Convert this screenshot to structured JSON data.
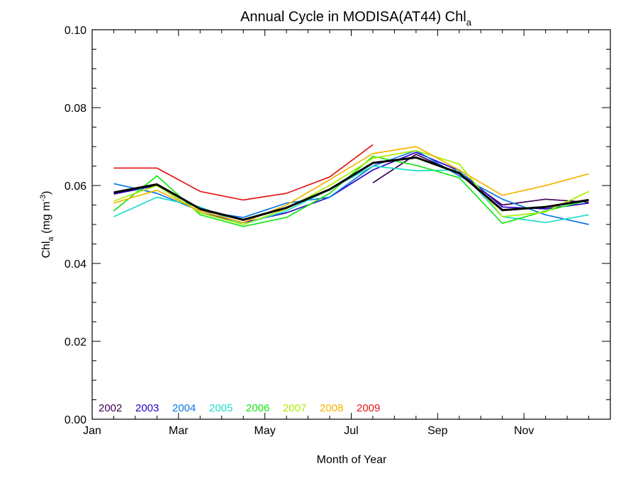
{
  "chart_data": {
    "type": "line",
    "title_main": "Annual Cycle in MODISA(AT44) Chl",
    "title_sub": "a",
    "ylabel_main": "Chl",
    "ylabel_sub": "a",
    "ylabel_units_open": " (mg m",
    "ylabel_units_sup": "-3",
    "ylabel_units_close": ")",
    "xlabel": "Month of Year",
    "xlim": [
      0,
      12
    ],
    "ylim": [
      0.0,
      0.1
    ],
    "x_tick_labels": [
      {
        "x": 0,
        "label": "Jan"
      },
      {
        "x": 2,
        "label": "Mar"
      },
      {
        "x": 4,
        "label": "May"
      },
      {
        "x": 6,
        "label": "Jul"
      },
      {
        "x": 8,
        "label": "Sep"
      },
      {
        "x": 10,
        "label": "Nov"
      }
    ],
    "y_tick_labels": [
      {
        "y": 0.0,
        "label": "0.00"
      },
      {
        "y": 0.02,
        "label": "0.02"
      },
      {
        "y": 0.04,
        "label": "0.04"
      },
      {
        "y": 0.06,
        "label": "0.06"
      },
      {
        "y": 0.08,
        "label": "0.08"
      },
      {
        "y": 0.1,
        "label": "0.10"
      }
    ],
    "grid": false,
    "legend_position": "bottom-left",
    "series": [
      {
        "name": "2002",
        "color": "#3d0050",
        "x": [
          6.5,
          7.5,
          8.5,
          9.5,
          10.5,
          11.5
        ],
        "values": [
          0.0607,
          0.068,
          0.063,
          0.055,
          0.0565,
          0.0557
        ]
      },
      {
        "name": "2003",
        "color": "#2800c8",
        "x": [
          0.5,
          1.5,
          2.5,
          3.5,
          4.5,
          5.5,
          6.5,
          7.5,
          8.5,
          9.5,
          10.5,
          11.5
        ],
        "values": [
          0.0578,
          0.06,
          0.053,
          0.0505,
          0.053,
          0.057,
          0.064,
          0.0685,
          0.0638,
          0.0545,
          0.054,
          0.0555
        ]
      },
      {
        "name": "2004",
        "color": "#0a78e6",
        "x": [
          0.5,
          1.5,
          2.5,
          3.5,
          4.5,
          5.5,
          6.5,
          7.5,
          8.5,
          9.5,
          10.5,
          11.5
        ],
        "values": [
          0.0605,
          0.058,
          0.0535,
          0.0518,
          0.0555,
          0.057,
          0.065,
          0.069,
          0.0625,
          0.0565,
          0.0525,
          0.05
        ]
      },
      {
        "name": "2005",
        "color": "#1edcc8",
        "x": [
          0.5,
          1.5,
          2.5,
          3.5,
          4.5,
          5.5,
          6.5,
          7.5,
          8.5,
          9.5,
          10.5,
          11.5
        ],
        "values": [
          0.052,
          0.057,
          0.0545,
          0.05,
          0.0535,
          0.059,
          0.065,
          0.0638,
          0.064,
          0.052,
          0.0505,
          0.0525
        ]
      },
      {
        "name": "2006",
        "color": "#14e614",
        "x": [
          0.5,
          1.5,
          2.5,
          3.5,
          4.5,
          5.5,
          6.5,
          7.5,
          8.5,
          9.5,
          10.5,
          11.5
        ],
        "values": [
          0.0535,
          0.0625,
          0.0525,
          0.0495,
          0.0518,
          0.058,
          0.0675,
          0.0652,
          0.062,
          0.0503,
          0.0535,
          0.0562
        ]
      },
      {
        "name": "2007",
        "color": "#aaf000",
        "x": [
          0.5,
          1.5,
          2.5,
          3.5,
          4.5,
          5.5,
          6.5,
          7.5,
          8.5,
          9.5,
          10.5,
          11.5
        ],
        "values": [
          0.056,
          0.06,
          0.053,
          0.05,
          0.054,
          0.06,
          0.067,
          0.069,
          0.0655,
          0.052,
          0.0532,
          0.0585
        ]
      },
      {
        "name": "2008",
        "color": "#f5b400",
        "x": [
          0.5,
          1.5,
          2.5,
          3.5,
          4.5,
          5.5,
          6.5,
          7.5,
          8.5,
          9.5,
          10.5,
          11.5
        ],
        "values": [
          0.0555,
          0.0588,
          0.0535,
          0.0505,
          0.055,
          0.0615,
          0.0682,
          0.07,
          0.064,
          0.0575,
          0.06,
          0.063
        ]
      },
      {
        "name": "2009",
        "color": "#e61414",
        "x": [
          0.5,
          1.5,
          2.5,
          3.5,
          4.5,
          5.5,
          6.5
        ],
        "values": [
          0.0645,
          0.0645,
          0.0585,
          0.0563,
          0.058,
          0.0622,
          0.0705
        ]
      },
      {
        "name": "",
        "color": "#000000",
        "mean": true,
        "x": [
          0.5,
          1.5,
          2.5,
          3.5,
          4.5,
          5.5,
          6.5,
          7.5,
          8.5,
          9.5,
          10.5,
          11.5
        ],
        "values": [
          0.0582,
          0.0603,
          0.054,
          0.0512,
          0.0543,
          0.059,
          0.0658,
          0.0672,
          0.0632,
          0.0537,
          0.0545,
          0.0563
        ]
      }
    ]
  }
}
